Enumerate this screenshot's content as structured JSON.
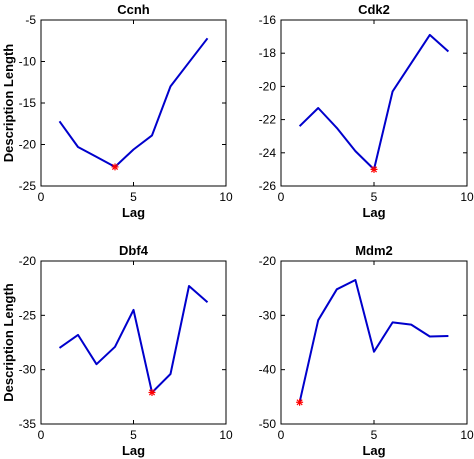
{
  "chart_data": [
    {
      "type": "line",
      "title": "Ccnh",
      "xlabel": "Lag",
      "ylabel": "Description Length",
      "xlim": [
        0,
        10
      ],
      "ylim": [
        -25,
        -5
      ],
      "xticks": [
        0,
        5,
        10
      ],
      "yticks": [
        -25,
        -20,
        -15,
        -10,
        -5
      ],
      "x": [
        1,
        2,
        3,
        4,
        5,
        6,
        7,
        8,
        9
      ],
      "series": [
        {
          "values": [
            -17.2,
            -20.3,
            -21.5,
            -22.7,
            -20.6,
            -18.9,
            -13.0,
            -10.1,
            -7.2
          ],
          "color": "#0000cc"
        }
      ],
      "marker": {
        "x": 4,
        "y": -22.7,
        "color": "#ff0000",
        "symbol": "asterisk"
      }
    },
    {
      "type": "line",
      "title": "Cdk2",
      "xlabel": "Lag",
      "ylabel": "",
      "xlim": [
        0,
        10
      ],
      "ylim": [
        -26,
        -16
      ],
      "xticks": [
        0,
        5,
        10
      ],
      "yticks": [
        -26,
        -24,
        -22,
        -20,
        -18,
        -16
      ],
      "x": [
        1,
        2,
        3,
        4,
        5,
        6,
        7,
        8,
        9
      ],
      "series": [
        {
          "values": [
            -22.4,
            -21.3,
            -22.5,
            -23.9,
            -25.0,
            -20.3,
            -18.6,
            -16.9,
            -17.9
          ],
          "color": "#0000cc"
        }
      ],
      "marker": {
        "x": 5,
        "y": -25.0,
        "color": "#ff0000",
        "symbol": "asterisk"
      }
    },
    {
      "type": "line",
      "title": "Dbf4",
      "xlabel": "Lag",
      "ylabel": "Description Length",
      "xlim": [
        0,
        10
      ],
      "ylim": [
        -35,
        -20
      ],
      "xticks": [
        0,
        5,
        10
      ],
      "yticks": [
        -35,
        -30,
        -25,
        -20
      ],
      "x": [
        1,
        2,
        3,
        4,
        5,
        6,
        7,
        8,
        9
      ],
      "series": [
        {
          "values": [
            -28.0,
            -26.8,
            -29.5,
            -27.9,
            -24.5,
            -32.1,
            -30.4,
            -22.3,
            -23.8
          ],
          "color": "#0000cc"
        }
      ],
      "marker": {
        "x": 6,
        "y": -32.1,
        "color": "#ff0000",
        "symbol": "asterisk"
      }
    },
    {
      "type": "line",
      "title": "Mdm2",
      "xlabel": "Lag",
      "ylabel": "",
      "xlim": [
        0,
        10
      ],
      "ylim": [
        -50,
        -20
      ],
      "xticks": [
        0,
        5,
        10
      ],
      "yticks": [
        -50,
        -40,
        -30,
        -20
      ],
      "x": [
        1,
        2,
        3,
        4,
        5,
        6,
        7,
        8,
        9
      ],
      "series": [
        {
          "values": [
            -46.0,
            -30.9,
            -25.2,
            -23.5,
            -36.7,
            -31.3,
            -31.7,
            -33.9,
            -33.8
          ],
          "color": "#0000cc"
        }
      ],
      "marker": {
        "x": 1,
        "y": -46.0,
        "color": "#ff0000",
        "symbol": "asterisk"
      }
    }
  ]
}
